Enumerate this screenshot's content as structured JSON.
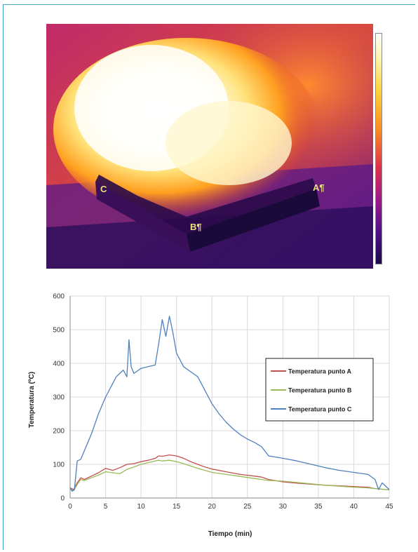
{
  "thermal_image": {
    "markers": [
      {
        "label": "A¶"
      },
      {
        "label": "B¶"
      },
      {
        "label": "C"
      }
    ],
    "colorbar": {
      "top_label": "",
      "bottom_label": ""
    }
  },
  "chart_data": {
    "type": "line",
    "title": "",
    "xlabel": "Tiempo (min)",
    "ylabel": "Temperatura (ºC)",
    "xlim": [
      0,
      45
    ],
    "ylim": [
      0,
      600
    ],
    "xticks": [
      0,
      5,
      10,
      15,
      20,
      25,
      30,
      35,
      40,
      45
    ],
    "yticks": [
      0,
      100,
      200,
      300,
      400,
      500,
      600
    ],
    "grid": true,
    "legend_position": "right",
    "series": [
      {
        "name": "Temperatura punto A",
        "color": "#c0504d",
        "x": [
          0,
          0.5,
          1,
          1.5,
          2,
          3,
          4,
          5,
          6,
          7,
          8,
          9,
          10,
          11,
          12,
          12.5,
          13,
          14,
          15,
          16,
          17,
          18,
          19,
          20,
          22,
          24,
          26,
          27,
          28,
          30,
          32,
          34,
          36,
          38,
          40,
          42,
          43,
          44,
          45
        ],
        "y": [
          30,
          25,
          45,
          60,
          55,
          65,
          75,
          88,
          82,
          90,
          100,
          102,
          108,
          112,
          118,
          125,
          124,
          128,
          125,
          118,
          108,
          100,
          92,
          86,
          78,
          70,
          65,
          62,
          55,
          48,
          44,
          41,
          38,
          36,
          34,
          32,
          28,
          26,
          24
        ]
      },
      {
        "name": "Temperatura punto B",
        "color": "#9bbb59",
        "x": [
          0,
          0.5,
          1,
          1.5,
          2,
          3,
          4,
          5,
          6,
          7,
          8,
          9,
          10,
          11,
          12,
          12.5,
          13,
          14,
          15,
          16,
          17,
          18,
          19,
          20,
          22,
          24,
          26,
          27,
          28,
          30,
          32,
          34,
          36,
          38,
          40,
          42,
          43,
          44,
          45
        ],
        "y": [
          28,
          22,
          40,
          55,
          52,
          60,
          68,
          78,
          75,
          72,
          85,
          92,
          100,
          105,
          110,
          112,
          110,
          112,
          108,
          102,
          95,
          88,
          82,
          76,
          70,
          64,
          58,
          55,
          52,
          50,
          46,
          42,
          38,
          35,
          32,
          30,
          28,
          26,
          24
        ]
      },
      {
        "name": "Temperatura punto C",
        "color": "#4f81bd",
        "x": [
          0,
          0.3,
          0.6,
          1,
          1.5,
          2,
          3,
          4,
          5,
          6,
          6.5,
          7,
          7.5,
          8,
          8.3,
          8.6,
          9,
          10,
          11,
          12,
          12.5,
          13,
          13.5,
          14,
          14.5,
          15,
          16,
          17,
          18,
          19,
          20,
          21,
          22,
          23,
          24,
          25,
          26,
          27,
          28,
          30,
          32,
          34,
          36,
          38,
          40,
          42,
          43,
          43.5,
          44,
          45
        ],
        "y": [
          30,
          20,
          25,
          110,
          115,
          140,
          190,
          250,
          300,
          340,
          360,
          370,
          380,
          360,
          470,
          390,
          370,
          385,
          390,
          395,
          460,
          530,
          480,
          540,
          490,
          430,
          390,
          375,
          360,
          320,
          280,
          250,
          225,
          205,
          188,
          175,
          165,
          152,
          125,
          118,
          110,
          100,
          90,
          82,
          76,
          70,
          55,
          25,
          45,
          25
        ]
      }
    ]
  }
}
